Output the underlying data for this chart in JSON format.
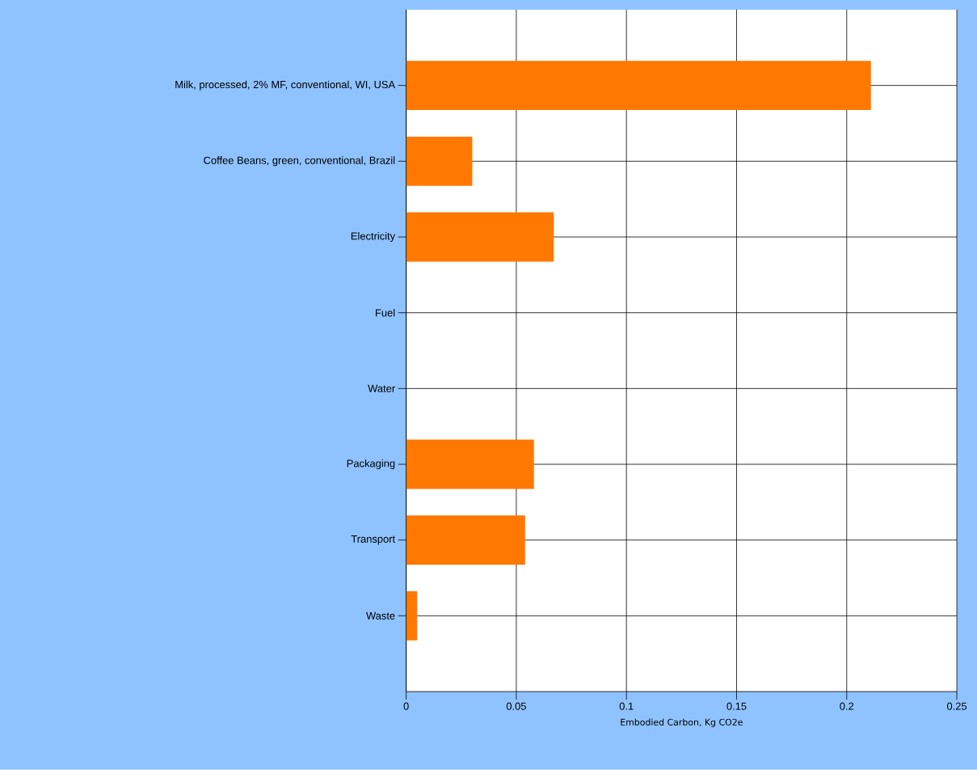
{
  "chart_data": {
    "type": "bar",
    "orientation": "horizontal",
    "categories": [
      "Milk, processed, 2% MF, conventional, WI, USA",
      "Coffee Beans, green, conventional, Brazil",
      "Electricity",
      "Fuel",
      "Water",
      "Packaging",
      "Transport",
      "Waste"
    ],
    "values": [
      0.211,
      0.03,
      0.067,
      0,
      0,
      0.058,
      0.054,
      0.005
    ],
    "color": "#ff7800",
    "xlabel": "Embodied Carbon, Kg CO2e",
    "xlim": [
      0,
      0.25
    ],
    "xticks": [
      0,
      0.05,
      0.1,
      0.15,
      0.2,
      0.25
    ],
    "grid": true
  }
}
